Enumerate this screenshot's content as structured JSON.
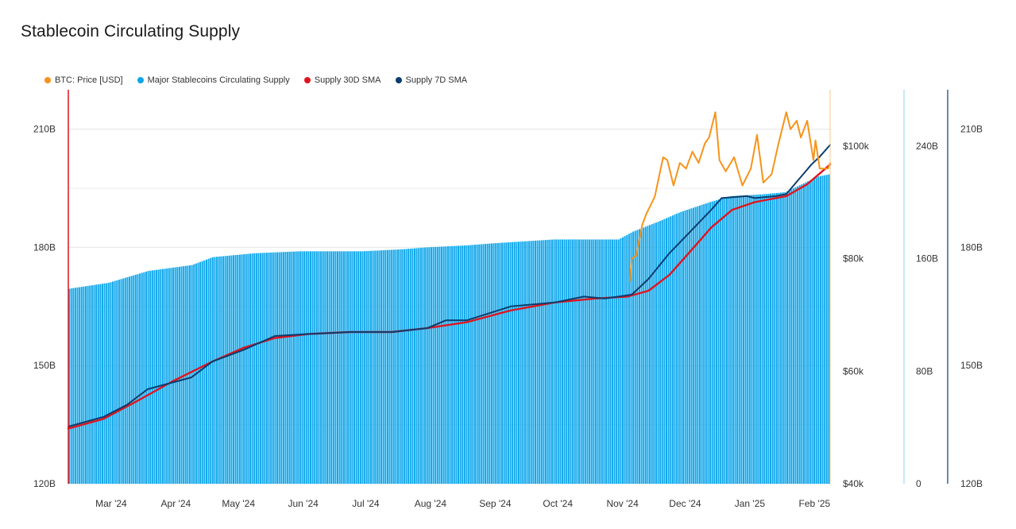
{
  "title": "Stablecoin Circulating Supply",
  "legend": [
    {
      "label": "BTC: Price [USD]",
      "color": "#f7931a"
    },
    {
      "label": "Major Stablecoins Circulating Supply",
      "color": "#0ea5e9"
    },
    {
      "label": "Supply 30D SMA",
      "color": "#e0141e"
    },
    {
      "label": "Supply 7D SMA",
      "color": "#0b3d6e"
    }
  ],
  "chart_data": {
    "type": "bar",
    "x_domain": [
      "2024-02-11",
      "2025-02-10"
    ],
    "x_ticks": [
      {
        "date": "2024-03-01",
        "label": "Mar '24"
      },
      {
        "date": "2024-04-01",
        "label": "Apr '24"
      },
      {
        "date": "2024-05-01",
        "label": "May '24"
      },
      {
        "date": "2024-06-01",
        "label": "Jun '24"
      },
      {
        "date": "2024-07-01",
        "label": "Jul '24"
      },
      {
        "date": "2024-08-01",
        "label": "Aug '24"
      },
      {
        "date": "2024-09-01",
        "label": "Sep '24"
      },
      {
        "date": "2024-10-01",
        "label": "Oct '24"
      },
      {
        "date": "2024-11-01",
        "label": "Nov '24"
      },
      {
        "date": "2024-12-01",
        "label": "Dec '24"
      },
      {
        "date": "2025-01-01",
        "label": "Jan '25"
      },
      {
        "date": "2025-02-01",
        "label": "Feb '25"
      }
    ],
    "axes": {
      "left_supply": {
        "range": [
          120,
          220
        ],
        "ticks": [
          {
            "v": 120,
            "label": "120B"
          },
          {
            "v": 150,
            "label": "150B"
          },
          {
            "v": 180,
            "label": "180B"
          },
          {
            "v": 210,
            "label": "210B"
          }
        ]
      },
      "price": {
        "range": [
          40000,
          110000
        ],
        "ticks": [
          {
            "v": 40000,
            "label": "$40k"
          },
          {
            "v": 60000,
            "label": "$60k"
          },
          {
            "v": 80000,
            "label": "$80k"
          },
          {
            "v": 100000,
            "label": "$100k"
          }
        ]
      },
      "right_1": {
        "range": [
          0,
          280
        ],
        "ticks": [
          {
            "v": 0,
            "label": "0"
          },
          {
            "v": 80,
            "label": "80B"
          },
          {
            "v": 160,
            "label": "160B"
          },
          {
            "v": 240,
            "label": "240B"
          }
        ]
      },
      "right_2": {
        "range": [
          120,
          220
        ],
        "ticks": [
          {
            "v": 120,
            "label": "120B"
          },
          {
            "v": 150,
            "label": "150B"
          },
          {
            "v": 180,
            "label": "180B"
          },
          {
            "v": 210,
            "label": "210B"
          }
        ]
      }
    },
    "series": [
      {
        "name": "Major Stablecoins Circulating Supply",
        "type": "bar",
        "color": "#14a9ec",
        "points": [
          [
            "2024-02-11",
            169.5
          ],
          [
            "2024-03-01",
            171
          ],
          [
            "2024-03-20",
            174
          ],
          [
            "2024-04-10",
            175.5
          ],
          [
            "2024-04-20",
            177.5
          ],
          [
            "2024-05-10",
            178.5
          ],
          [
            "2024-06-01",
            179
          ],
          [
            "2024-07-01",
            179
          ],
          [
            "2024-07-20",
            179.5
          ],
          [
            "2024-08-01",
            180
          ],
          [
            "2024-08-20",
            180.5
          ],
          [
            "2024-09-01",
            181
          ],
          [
            "2024-10-01",
            182
          ],
          [
            "2024-11-01",
            182
          ],
          [
            "2024-11-08",
            184
          ],
          [
            "2024-11-20",
            186.5
          ],
          [
            "2024-12-01",
            189
          ],
          [
            "2024-12-15",
            191.5
          ],
          [
            "2024-12-25",
            193
          ],
          [
            "2025-01-10",
            193.5
          ],
          [
            "2025-01-20",
            194
          ],
          [
            "2025-01-28",
            196
          ],
          [
            "2025-02-05",
            198
          ],
          [
            "2025-02-10",
            198.5
          ]
        ]
      },
      {
        "name": "BTC: Price [USD]",
        "type": "line",
        "color": "#f7931a",
        "points": [
          [
            "2024-11-06",
            76000
          ],
          [
            "2024-11-07",
            80000
          ],
          [
            "2024-11-09",
            80500
          ],
          [
            "2024-11-12",
            86000
          ],
          [
            "2024-11-14",
            88000
          ],
          [
            "2024-11-18",
            91000
          ],
          [
            "2024-11-22",
            98000
          ],
          [
            "2024-11-24",
            97500
          ],
          [
            "2024-11-27",
            93000
          ],
          [
            "2024-11-30",
            97000
          ],
          [
            "2024-12-03",
            96000
          ],
          [
            "2024-12-06",
            99000
          ],
          [
            "2024-12-09",
            97000
          ],
          [
            "2024-12-12",
            100500
          ],
          [
            "2024-12-14",
            101500
          ],
          [
            "2024-12-17",
            106000
          ],
          [
            "2024-12-19",
            97500
          ],
          [
            "2024-12-22",
            95500
          ],
          [
            "2024-12-26",
            98000
          ],
          [
            "2024-12-30",
            93000
          ],
          [
            "2025-01-03",
            96000
          ],
          [
            "2025-01-06",
            102000
          ],
          [
            "2025-01-09",
            93500
          ],
          [
            "2025-01-13",
            95000
          ],
          [
            "2025-01-16",
            100000
          ],
          [
            "2025-01-20",
            106000
          ],
          [
            "2025-01-22",
            103000
          ],
          [
            "2025-01-25",
            104500
          ],
          [
            "2025-01-27",
            101500
          ],
          [
            "2025-01-30",
            104500
          ],
          [
            "2025-02-02",
            97500
          ],
          [
            "2025-02-03",
            101000
          ],
          [
            "2025-02-05",
            96000
          ],
          [
            "2025-02-09",
            96000
          ],
          [
            "2025-02-10",
            97000
          ]
        ]
      },
      {
        "name": "Supply 30D SMA",
        "type": "line",
        "color": "#e0141e",
        "points": [
          [
            "2024-02-11",
            134
          ],
          [
            "2024-02-28",
            136.5
          ],
          [
            "2024-03-15",
            141
          ],
          [
            "2024-04-01",
            146
          ],
          [
            "2024-04-20",
            151
          ],
          [
            "2024-05-05",
            154.5
          ],
          [
            "2024-05-20",
            157
          ],
          [
            "2024-06-05",
            158
          ],
          [
            "2024-06-25",
            158.5
          ],
          [
            "2024-07-15",
            158.5
          ],
          [
            "2024-08-01",
            159.5
          ],
          [
            "2024-08-20",
            161
          ],
          [
            "2024-09-10",
            164
          ],
          [
            "2024-10-01",
            166
          ],
          [
            "2024-10-20",
            167
          ],
          [
            "2024-11-05",
            167.5
          ],
          [
            "2024-11-15",
            169
          ],
          [
            "2024-11-25",
            173
          ],
          [
            "2024-12-05",
            179
          ],
          [
            "2024-12-15",
            185
          ],
          [
            "2024-12-25",
            189.5
          ],
          [
            "2025-01-05",
            191.5
          ],
          [
            "2025-01-20",
            193
          ],
          [
            "2025-01-30",
            196
          ],
          [
            "2025-02-10",
            201
          ]
        ]
      },
      {
        "name": "Supply 7D SMA",
        "type": "line",
        "color": "#0b3d6e",
        "points": [
          [
            "2024-02-11",
            134.5
          ],
          [
            "2024-02-28",
            137
          ],
          [
            "2024-03-10",
            140
          ],
          [
            "2024-03-20",
            144
          ],
          [
            "2024-04-10",
            147
          ],
          [
            "2024-04-20",
            151
          ],
          [
            "2024-05-05",
            154
          ],
          [
            "2024-05-20",
            157.5
          ],
          [
            "2024-06-05",
            158
          ],
          [
            "2024-06-25",
            158.5
          ],
          [
            "2024-07-15",
            158.5
          ],
          [
            "2024-08-01",
            159.5
          ],
          [
            "2024-08-10",
            161.5
          ],
          [
            "2024-08-20",
            161.5
          ],
          [
            "2024-09-10",
            165
          ],
          [
            "2024-10-01",
            166
          ],
          [
            "2024-10-15",
            167.5
          ],
          [
            "2024-10-25",
            167
          ],
          [
            "2024-11-07",
            168
          ],
          [
            "2024-11-15",
            172
          ],
          [
            "2024-11-25",
            178.5
          ],
          [
            "2024-12-05",
            184
          ],
          [
            "2024-12-15",
            189.5
          ],
          [
            "2024-12-20",
            192.5
          ],
          [
            "2025-01-01",
            193
          ],
          [
            "2025-01-05",
            192.5
          ],
          [
            "2025-01-15",
            193
          ],
          [
            "2025-01-20",
            193.5
          ],
          [
            "2025-02-01",
            201
          ],
          [
            "2025-02-05",
            203
          ],
          [
            "2025-02-10",
            206
          ]
        ]
      }
    ]
  }
}
